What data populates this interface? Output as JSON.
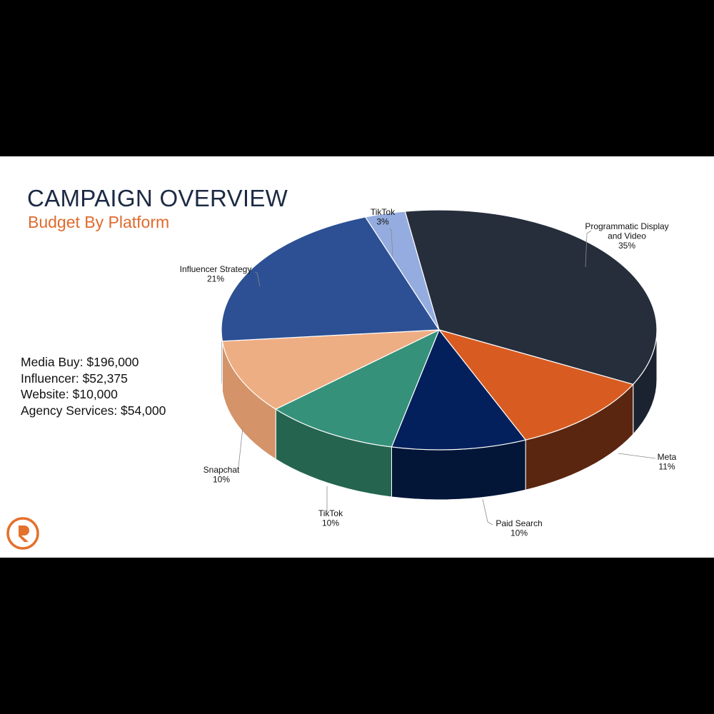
{
  "slide": {
    "title": "CAMPAIGN OVERVIEW",
    "subtitle": "Budget By Platform",
    "summary": [
      "Media Buy: $196,000",
      "Influencer: $52,375",
      "Website: $10,000",
      "Agency Services: $54,000"
    ],
    "logo_icon": "brand-logo-icon"
  },
  "chart_data": {
    "type": "pie",
    "style": "3d",
    "title": "",
    "slices": [
      {
        "label": [
          "Programmatic Display",
          "and Video"
        ],
        "value": 35,
        "display": "35%",
        "color": "#262e3c",
        "side_color": "#1b2230"
      },
      {
        "label": [
          "Meta"
        ],
        "value": 11,
        "display": "11%",
        "color": "#d85c21",
        "side_color": "#5a2610"
      },
      {
        "label": [
          "Paid Search"
        ],
        "value": 10,
        "display": "10%",
        "color": "#04205c",
        "side_color": "#031638"
      },
      {
        "label": [
          "TikTok"
        ],
        "value": 10,
        "display": "10%",
        "color": "#35917a",
        "side_color": "#25654f"
      },
      {
        "label": [
          "Snapchat"
        ],
        "value": 10,
        "display": "10%",
        "color": "#eeae83",
        "side_color": "#d49368"
      },
      {
        "label": [
          "Influencer Strategy"
        ],
        "value": 21,
        "display": "21%",
        "color": "#2c5093",
        "side_color": "#1f3b70"
      },
      {
        "label": [
          "TikTok"
        ],
        "value": 3,
        "display": "3%",
        "color": "#94acdf",
        "side_color": "#7187b8"
      }
    ]
  }
}
